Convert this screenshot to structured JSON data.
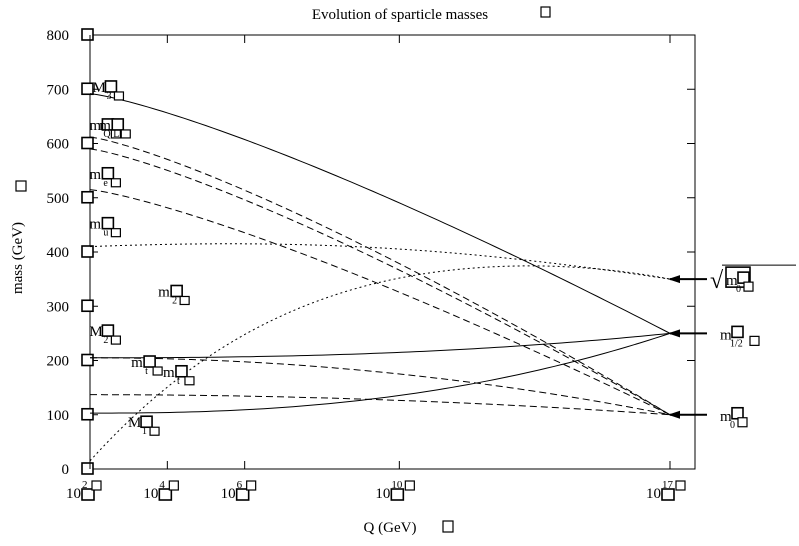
{
  "chart_data": {
    "type": "line",
    "title": "Evolution of sparticle masses",
    "xlabel": "Q  (GeV)",
    "ylabel": "mass (GeV)",
    "xscale": "log",
    "xlim": [
      100,
      1e+17
    ],
    "ylim": [
      0,
      800
    ],
    "yticks": [
      0,
      100,
      200,
      300,
      400,
      500,
      600,
      700,
      800
    ],
    "xticks": [
      {
        "base": "10",
        "exp": "2"
      },
      {
        "base": "10",
        "exp": "4"
      },
      {
        "base": "10",
        "exp": "6"
      },
      {
        "base": "10",
        "exp": "10"
      },
      {
        "base": "10",
        "exp": "17"
      }
    ],
    "xtick_values": [
      100,
      10000,
      1000000,
      10000000000,
      1e+17
    ],
    "series": [
      {
        "style": "solid",
        "x": [
          100,
          1e+17
        ],
        "y": [
          692,
          250
        ]
      },
      {
        "style": "solid",
        "x": [
          100,
          1e+17
        ],
        "y": [
          205,
          250
        ]
      },
      {
        "style": "solid",
        "x": [
          100,
          1e+17
        ],
        "y": [
          103,
          250
        ]
      },
      {
        "style": "dashed",
        "x": [
          100,
          1e+17
        ],
        "y": [
          612,
          100
        ]
      },
      {
        "style": "dashed",
        "x": [
          100,
          1e+17
        ],
        "y": [
          590,
          100
        ]
      },
      {
        "style": "dashed",
        "x": [
          100,
          1e+17
        ],
        "y": [
          515,
          100
        ]
      },
      {
        "style": "dashed",
        "x": [
          100,
          1e+17
        ],
        "y": [
          205,
          100
        ]
      },
      {
        "style": "dashed",
        "x": [
          100,
          1e+17
        ],
        "y": [
          137,
          100
        ]
      },
      {
        "style": "dotted",
        "x": [
          100,
          1e+17
        ],
        "y": [
          410,
          350
        ]
      },
      {
        "style": "dotted",
        "x": [
          100,
          1e+17
        ],
        "y": [
          15,
          350
        ]
      }
    ],
    "curve_labels": [
      {
        "main": "M",
        "sub": "3",
        "x": 300,
        "y": 695
      },
      {
        "main": "m",
        "sub": "Q",
        "x": 250,
        "y": 625
      },
      {
        "main": "m",
        "sub": "L",
        "x": 450,
        "y": 625
      },
      {
        "main": "m",
        "sub": "e",
        "x": 250,
        "y": 535
      },
      {
        "main": "m",
        "sub": "u",
        "x": 250,
        "y": 443
      },
      {
        "main": "m",
        "sub": "2",
        "x": 15000,
        "y": 318
      },
      {
        "main": "M",
        "sub": "2",
        "x": 250,
        "y": 245
      },
      {
        "main": "m",
        "sub": "t",
        "x": 3000,
        "y": 188
      },
      {
        "main": "m",
        "sub": "t",
        "x": 20000,
        "y": 170
      },
      {
        "main": "M",
        "sub": "1",
        "x": 2500,
        "y": 77
      }
    ],
    "right_annotations": [
      {
        "main": "m",
        "sub": "0",
        "y": 100
      },
      {
        "main": "m",
        "sub": "1/2",
        "y": 250
      },
      {
        "main": "m",
        "sub": "0",
        "prefix": "√",
        "y": 350
      }
    ]
  }
}
